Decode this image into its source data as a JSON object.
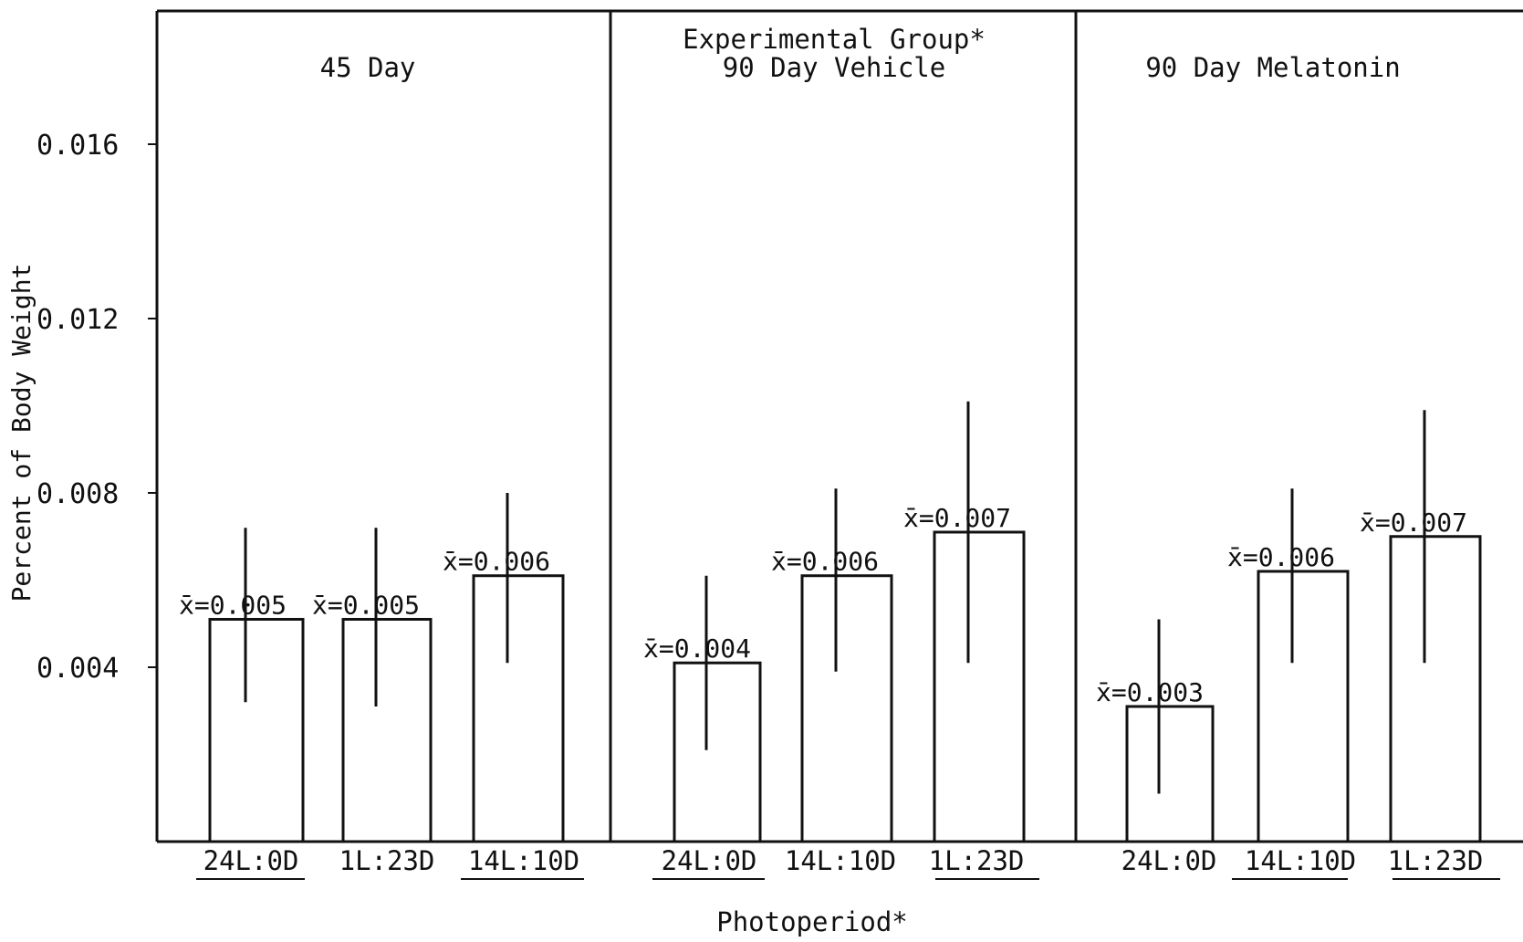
{
  "chart_data": {
    "type": "bar",
    "title": "Experimental Group*",
    "xlabel": "Photoperiod*",
    "ylabel": "Percent of Body Weight",
    "ylim": [
      0,
      0.019
    ],
    "yticks": [
      0.004,
      0.008,
      0.012,
      0.016
    ],
    "ytick_labels": [
      "0.004",
      "0.008",
      "0.012",
      "0.016"
    ],
    "grid": false,
    "legend": "none",
    "groups": [
      {
        "name": "45 Day",
        "bars": [
          {
            "category": "24L:0D",
            "value": 0.0051,
            "err_low": 0.0032,
            "err_high": 0.0072,
            "label": "x̄=0.005"
          },
          {
            "category": "1L:23D",
            "value": 0.0051,
            "err_low": 0.0031,
            "err_high": 0.0072,
            "label": "x̄=0.005"
          },
          {
            "category": "14L:10D",
            "value": 0.0061,
            "err_low": 0.0041,
            "err_high": 0.008,
            "label": "x̄=0.006"
          }
        ]
      },
      {
        "name": "90 Day Vehicle",
        "bars": [
          {
            "category": "24L:0D",
            "value": 0.0041,
            "err_low": 0.0021,
            "err_high": 0.0061,
            "label": "x̄=0.004"
          },
          {
            "category": "14L:10D",
            "value": 0.0061,
            "err_low": 0.0039,
            "err_high": 0.0081,
            "label": "x̄=0.006"
          },
          {
            "category": "1L:23D",
            "value": 0.0071,
            "err_low": 0.0041,
            "err_high": 0.0101,
            "label": "x̄=0.007"
          }
        ]
      },
      {
        "name": "90 Day Melatonin",
        "bars": [
          {
            "category": "24L:0D",
            "value": 0.0031,
            "err_low": 0.0011,
            "err_high": 0.0051,
            "label": "x̄=0.003"
          },
          {
            "category": "14L:10D",
            "value": 0.0062,
            "err_low": 0.0041,
            "err_high": 0.0081,
            "label": "x̄=0.006"
          },
          {
            "category": "1L:23D",
            "value": 0.007,
            "err_low": 0.0041,
            "err_high": 0.0099,
            "label": "x̄=0.007"
          }
        ]
      }
    ]
  }
}
